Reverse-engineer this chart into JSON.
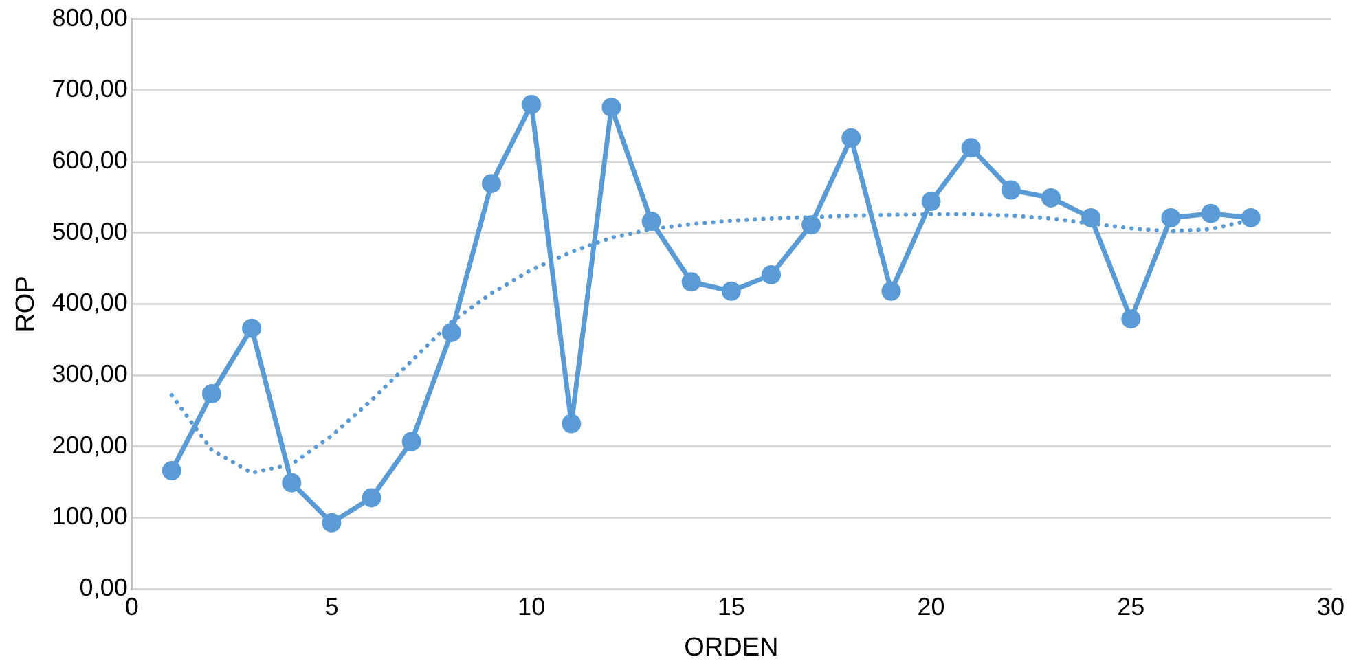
{
  "chart_data": {
    "type": "line",
    "xlabel": "ORDEN",
    "ylabel": "ROP",
    "x": [
      1,
      2,
      3,
      4,
      5,
      6,
      7,
      8,
      9,
      10,
      11,
      12,
      13,
      14,
      15,
      16,
      17,
      18,
      19,
      20,
      21,
      22,
      23,
      24,
      25,
      26,
      27,
      28
    ],
    "series": [
      {
        "color": "#5b9bd5",
        "marker": "circle",
        "line_style": "solid",
        "values": [
          166,
          274,
          366,
          149,
          93,
          128,
          207,
          360,
          569,
          680,
          232,
          676,
          516,
          431,
          418,
          441,
          511,
          633,
          418,
          544,
          619,
          560,
          549,
          521,
          379,
          521,
          527,
          521
        ]
      },
      {
        "type": "line",
        "color": "#5b9bd5",
        "marker": "none",
        "line_style": "dotted",
        "x": [
          1,
          2,
          3,
          4,
          5,
          6,
          7,
          8,
          9,
          10,
          11,
          12,
          13,
          14,
          15,
          16,
          17,
          18,
          19,
          20,
          21,
          22,
          23,
          24,
          25,
          26,
          27,
          28
        ],
        "values": [
          272,
          195,
          163,
          175,
          215,
          265,
          320,
          375,
          415,
          448,
          473,
          493,
          505,
          512,
          517,
          520,
          522,
          524,
          525,
          526,
          526,
          524,
          520,
          513,
          506,
          502,
          505,
          518
        ]
      }
    ],
    "xlim": [
      0,
      30
    ],
    "xticks": [
      0,
      5,
      10,
      15,
      20,
      25,
      30
    ],
    "ylim": [
      0,
      800
    ],
    "yticks": [
      {
        "value": 0,
        "label": "0,00"
      },
      {
        "value": 100,
        "label": "100,00"
      },
      {
        "value": 200,
        "label": "200,00"
      },
      {
        "value": 300,
        "label": "300,00"
      },
      {
        "value": 400,
        "label": "400,00"
      },
      {
        "value": 500,
        "label": "500,00"
      },
      {
        "value": 600,
        "label": "600,00"
      },
      {
        "value": 700,
        "label": "700,00"
      },
      {
        "value": 800,
        "label": "800,00"
      }
    ],
    "grid": "y",
    "legend": false
  }
}
